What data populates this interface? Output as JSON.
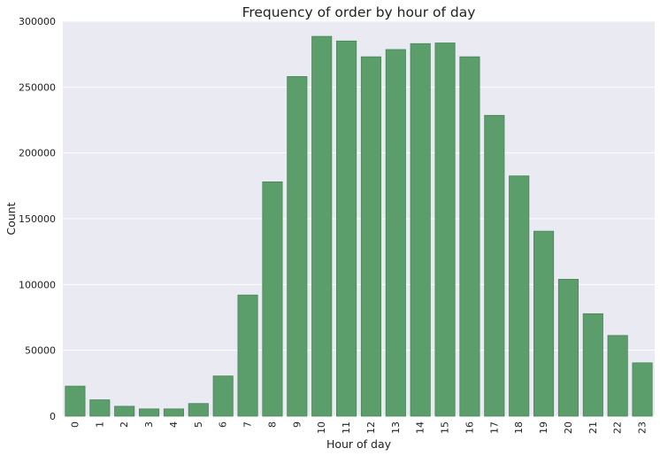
{
  "chart_data": {
    "type": "bar",
    "title": "Frequency of order by hour of day",
    "xlabel": "Hour of day",
    "ylabel": "Count",
    "categories": [
      "0",
      "1",
      "2",
      "3",
      "4",
      "5",
      "6",
      "7",
      "8",
      "9",
      "10",
      "11",
      "12",
      "13",
      "14",
      "15",
      "16",
      "17",
      "18",
      "19",
      "20",
      "21",
      "22",
      "23"
    ],
    "values": [
      22800,
      12400,
      7500,
      5500,
      5500,
      9600,
      30500,
      92000,
      178000,
      258000,
      288500,
      285000,
      273000,
      278500,
      283000,
      283500,
      273000,
      228500,
      182500,
      140500,
      104000,
      77800,
      61300,
      40500
    ],
    "ylim": [
      0,
      300000
    ],
    "yticks": [
      "0",
      "50000",
      "100000",
      "150000",
      "200000",
      "250000",
      "300000"
    ],
    "grid": true,
    "colors": {
      "bar": "#5c9e6b",
      "bar_edge": "#4a8558",
      "plot_background": "#eaeaf2",
      "grid": "#ffffff",
      "text": "#222222"
    }
  }
}
